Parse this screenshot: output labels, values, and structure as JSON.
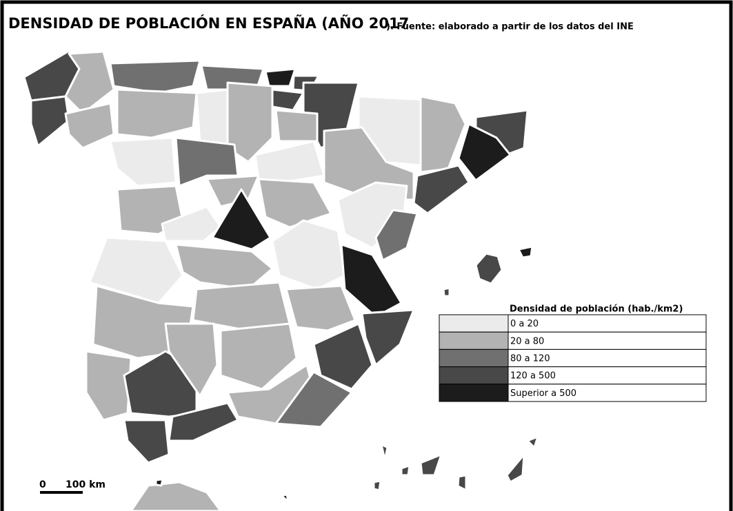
{
  "header": {
    "title": "DENSIDAD DE POBLACIÓN EN ESPAÑA (AÑO 2017",
    "source": "). Fuente: elaborado a partir de los datos del INE"
  },
  "legend": {
    "title": "Densidad de población (hab./km2)",
    "items": [
      {
        "label": "0 a 20",
        "color": "#ebebeb"
      },
      {
        "label": "20 a 80",
        "color": "#b3b3b3"
      },
      {
        "label": "80 a 120",
        "color": "#707070"
      },
      {
        "label": "120 a 500",
        "color": "#484848"
      },
      {
        "label": "Superior a 500",
        "color": "#1c1c1c"
      }
    ]
  },
  "scale_bar": {
    "start": "0",
    "end": "100 km"
  }
}
